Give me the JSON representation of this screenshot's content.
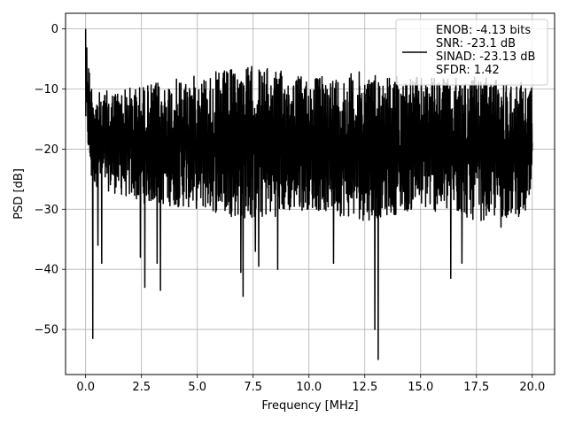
{
  "chart_data": {
    "type": "line",
    "title": "",
    "xlabel": "Frequency [MHz]",
    "ylabel": "PSD [dB]",
    "xlim": [
      -0.9,
      21.0
    ],
    "ylim": [
      -57.5,
      2.6
    ],
    "xticks": [
      0.0,
      2.5,
      5.0,
      7.5,
      10.0,
      12.5,
      15.0,
      17.5,
      20.0
    ],
    "xtick_labels": [
      "0.0",
      "2.5",
      "5.0",
      "7.5",
      "10.0",
      "12.5",
      "15.0",
      "17.5",
      "20.0"
    ],
    "yticks": [
      0,
      -10,
      -20,
      -30,
      -40,
      -50
    ],
    "ytick_labels": [
      "0",
      "−10",
      "−20",
      "−30",
      "−40",
      "−50"
    ],
    "grid": true,
    "legend_position": "top-right",
    "line_color": "#000000",
    "series": [
      {
        "name": "ENOB: -4.13 bits\nSNR: -23.1 dB\nSINAD: -23.13 dB\nSFDR: 1.42",
        "x_range": [
          0.0,
          20.0
        ],
        "envelope_top": [
          [
            0.0,
            0.0
          ],
          [
            0.1,
            -3.0
          ],
          [
            0.2,
            -8.0
          ],
          [
            0.5,
            -10.5
          ],
          [
            3.0,
            -9.0
          ],
          [
            7.5,
            -6.0
          ],
          [
            10.0,
            -8.0
          ],
          [
            12.5,
            -7.0
          ],
          [
            15.0,
            -8.0
          ],
          [
            17.5,
            -8.0
          ],
          [
            20.0,
            -9.0
          ]
        ],
        "envelope_bottom": [
          [
            0.0,
            -17.0
          ],
          [
            0.25,
            -26.0
          ],
          [
            2.5,
            -29.0
          ],
          [
            5.0,
            -30.0
          ],
          [
            7.5,
            -32.0
          ],
          [
            10.0,
            -30.0
          ],
          [
            12.5,
            -32.0
          ],
          [
            15.0,
            -30.0
          ],
          [
            17.5,
            -32.0
          ],
          [
            20.0,
            -31.0
          ]
        ],
        "notable_dips": [
          [
            0.32,
            -51.5
          ],
          [
            0.55,
            -36.0
          ],
          [
            0.72,
            -39.0
          ],
          [
            2.45,
            -38.0
          ],
          [
            2.65,
            -43.0
          ],
          [
            3.2,
            -39.0
          ],
          [
            3.35,
            -43.5
          ],
          [
            6.95,
            -40.5
          ],
          [
            7.05,
            -44.5
          ],
          [
            7.6,
            -37.0
          ],
          [
            7.75,
            -39.5
          ],
          [
            8.6,
            -40.0
          ],
          [
            11.1,
            -39.0
          ],
          [
            12.95,
            -50.0
          ],
          [
            13.1,
            -55.0
          ],
          [
            16.35,
            -41.5
          ],
          [
            16.85,
            -39.0
          ],
          [
            18.6,
            -33.0
          ]
        ]
      }
    ]
  }
}
